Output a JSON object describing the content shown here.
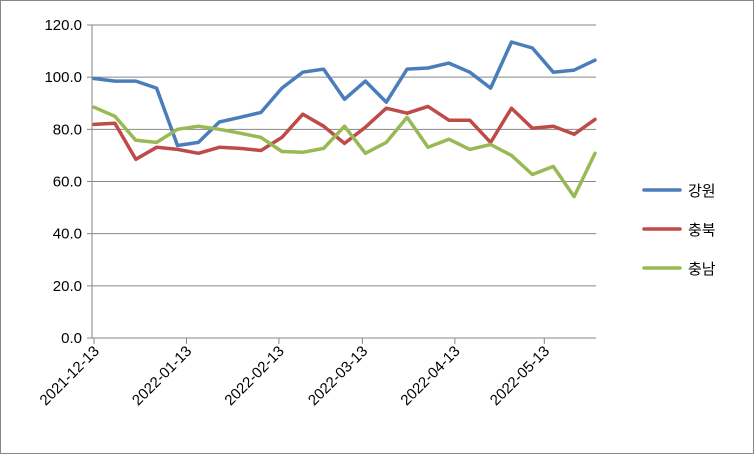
{
  "chart_data": {
    "type": "line",
    "title": "",
    "xlabel": "",
    "ylabel": "",
    "ylim": [
      0,
      120
    ],
    "yticks": [
      "0.0",
      "20.0",
      "40.0",
      "60.0",
      "80.0",
      "100.0",
      "120.0"
    ],
    "xtick_labels": [
      "2021-12-13",
      "2022-01-13",
      "2022-02-13",
      "2022-03-13",
      "2022-04-13",
      "2022-05-13"
    ],
    "x": [
      "2021-12-13",
      "2021-12-20",
      "2021-12-27",
      "2022-01-03",
      "2022-01-10",
      "2022-01-17",
      "2022-01-24",
      "2022-01-31",
      "2022-02-07",
      "2022-02-14",
      "2022-02-21",
      "2022-02-28",
      "2022-03-07",
      "2022-03-14",
      "2022-03-21",
      "2022-03-28",
      "2022-04-04",
      "2022-04-11",
      "2022-04-18",
      "2022-04-25",
      "2022-05-02",
      "2022-05-09",
      "2022-05-16",
      "2022-05-23",
      "2022-05-30"
    ],
    "grid": "horizontal",
    "legend_position": "right",
    "series": [
      {
        "name": "강원",
        "color": "#4a7ebb",
        "values": [
          99.5,
          98.5,
          98.5,
          95.8,
          73.8,
          75.0,
          82.8,
          84.6,
          86.5,
          95.8,
          101.9,
          103.1,
          91.5,
          98.5,
          90.4,
          103.1,
          103.5,
          105.4,
          101.9,
          95.8,
          113.5,
          111.2,
          101.9,
          102.7,
          106.5
        ]
      },
      {
        "name": "충북",
        "color": "#be4b48",
        "values": [
          81.9,
          82.3,
          68.5,
          73.1,
          72.3,
          70.8,
          73.1,
          72.7,
          71.9,
          76.9,
          85.8,
          81.2,
          74.6,
          80.8,
          88.1,
          86.2,
          88.8,
          83.5,
          83.5,
          75.0,
          88.1,
          80.4,
          81.2,
          78.1,
          83.8
        ]
      },
      {
        "name": "충남",
        "color": "#98b954",
        "values": [
          88.5,
          85.0,
          75.8,
          75.0,
          80.0,
          81.2,
          80.0,
          78.5,
          76.9,
          71.5,
          71.2,
          72.7,
          81.2,
          70.8,
          75.0,
          84.6,
          73.1,
          76.2,
          72.3,
          74.2,
          70.0,
          62.7,
          65.8,
          54.2,
          70.8
        ]
      }
    ]
  }
}
